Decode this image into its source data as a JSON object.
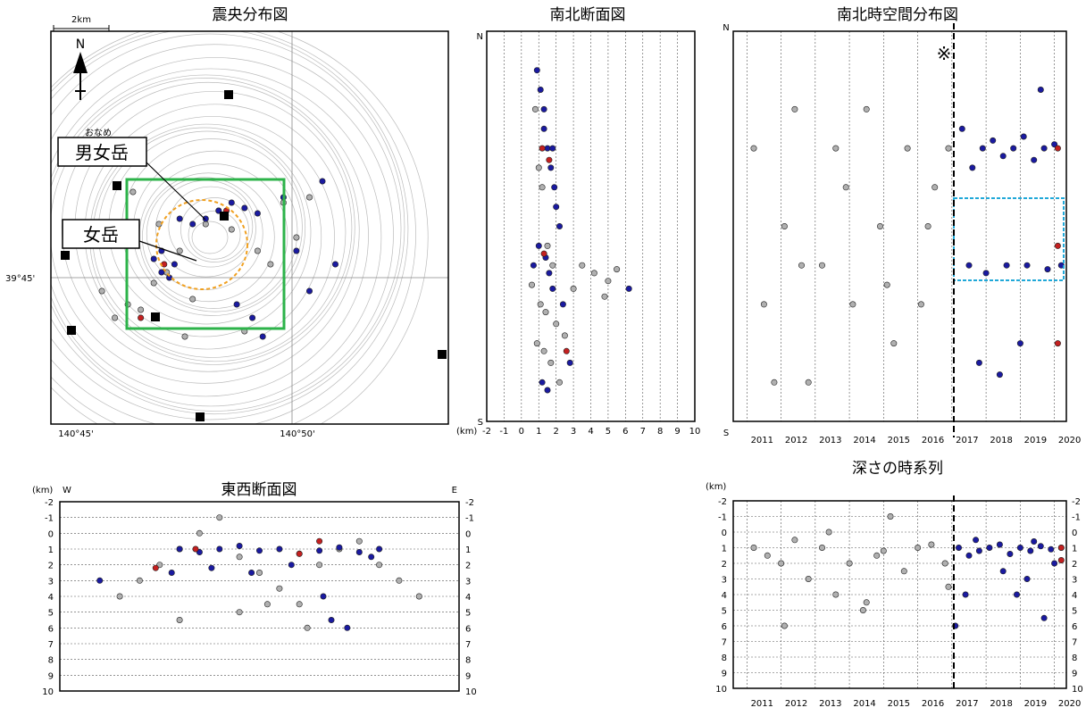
{
  "colors": {
    "old_events": "#b0b0b0",
    "recent_events": "#1a1aa0",
    "large_events": "#c42020",
    "highlight_box": "#2db34a",
    "crater_circle": "#f0a020",
    "focus_box": "#20a8d8"
  },
  "panels": {
    "epicenter": {
      "title": "震央分布図",
      "scale_label": "2km",
      "north_label": "N",
      "lat_label": "39°45'",
      "lon_labels": [
        "140°45'",
        "140°50'"
      ],
      "callout_ruby": "おなめ",
      "callout_1": "男女岳",
      "callout_2": "女岳"
    },
    "ns_section": {
      "title": "南北断面図",
      "top_label": "N",
      "bottom_label": "S",
      "unit": "(km)",
      "x_ticks": [
        "-2",
        "-1",
        "0",
        "1",
        "2",
        "3",
        "4",
        "5",
        "6",
        "7",
        "8",
        "9",
        "10"
      ]
    },
    "ns_time": {
      "title": "南北時空間分布図",
      "top_label": "N",
      "bottom_label": "S",
      "note_mark": "※",
      "years": [
        "2011",
        "2012",
        "2013",
        "2014",
        "2015",
        "2016",
        "2017",
        "2018",
        "2019",
        "2020"
      ]
    },
    "ew_section": {
      "title": "東西断面図",
      "unit": "(km)",
      "left_label": "W",
      "right_label": "E",
      "y_ticks": [
        "-2",
        "-1",
        "0",
        "1",
        "2",
        "3",
        "4",
        "5",
        "6",
        "7",
        "8",
        "9",
        "10"
      ]
    },
    "depth_time": {
      "title": "深さの時系列",
      "unit": "(km)",
      "y_ticks": [
        "-2",
        "-1",
        "0",
        "1",
        "2",
        "3",
        "4",
        "5",
        "6",
        "7",
        "8",
        "9",
        "10"
      ],
      "years": [
        "2011",
        "2012",
        "2013",
        "2014",
        "2015",
        "2016",
        "2017",
        "2018",
        "2019",
        "2020"
      ]
    }
  },
  "chart_data": [
    {
      "type": "scatter",
      "title": "震央分布図",
      "xlabel": "",
      "ylabel": "",
      "series": [
        {
          "color": "old_events",
          "x": [
            140.765,
            140.77,
            140.78,
            140.785,
            140.79,
            140.8,
            140.805,
            140.81,
            140.82,
            140.825,
            140.835,
            140.76,
            140.775,
            140.795,
            140.815,
            140.83,
            140.84,
            140.772,
            140.782,
            140.792
          ],
          "y": [
            39.735,
            39.74,
            39.748,
            39.752,
            39.76,
            39.77,
            39.775,
            39.768,
            39.76,
            39.755,
            39.765,
            39.745,
            39.738,
            39.742,
            39.73,
            39.778,
            39.78,
            39.782,
            39.77,
            39.728
          ]
        },
        {
          "color": "recent_events",
          "x": [
            140.78,
            140.783,
            140.786,
            140.8,
            140.805,
            140.81,
            140.815,
            140.82,
            140.83,
            140.845,
            140.85,
            140.79,
            140.795,
            140.812,
            140.818,
            140.822,
            140.84,
            140.835,
            140.783,
            140.788
          ],
          "y": [
            39.757,
            39.76,
            39.75,
            39.772,
            39.775,
            39.778,
            39.776,
            39.774,
            39.78,
            39.786,
            39.755,
            39.772,
            39.77,
            39.74,
            39.735,
            39.728,
            39.745,
            39.76,
            39.752,
            39.755
          ]
        },
        {
          "color": "large_events",
          "x": [
            140.784,
            140.808,
            140.775
          ],
          "y": [
            39.755,
            39.775,
            39.735
          ]
        }
      ]
    },
    {
      "type": "scatter",
      "title": "南北断面図",
      "xlabel": "(km)",
      "ylabel": "",
      "xlim": [
        -2,
        10
      ],
      "series": [
        {
          "color": "old_events",
          "x": [
            0.8,
            1.0,
            1.2,
            1.5,
            1.8,
            0.6,
            1.1,
            1.4,
            2.0,
            2.5,
            3.5,
            4.2,
            5.0,
            0.9,
            1.3,
            1.7,
            2.2,
            3.0,
            4.8,
            5.5
          ],
          "y": [
            0.2,
            0.35,
            0.4,
            0.55,
            0.6,
            0.65,
            0.7,
            0.72,
            0.75,
            0.78,
            0.6,
            0.62,
            0.64,
            0.8,
            0.82,
            0.85,
            0.9,
            0.66,
            0.68,
            0.61
          ]
        },
        {
          "color": "recent_events",
          "x": [
            0.9,
            1.1,
            1.3,
            1.5,
            1.7,
            1.9,
            2.0,
            2.2,
            1.0,
            1.4,
            1.6,
            1.8,
            2.4,
            2.8,
            1.2,
            1.5,
            0.7,
            6.2,
            1.3,
            1.8
          ],
          "y": [
            0.1,
            0.15,
            0.25,
            0.3,
            0.35,
            0.4,
            0.45,
            0.5,
            0.55,
            0.58,
            0.62,
            0.66,
            0.7,
            0.85,
            0.9,
            0.92,
            0.6,
            0.66,
            0.2,
            0.3
          ]
        },
        {
          "color": "large_events",
          "x": [
            1.2,
            1.6,
            1.3,
            2.6
          ],
          "y": [
            0.3,
            0.33,
            0.57,
            0.82
          ]
        }
      ]
    },
    {
      "type": "scatter",
      "title": "南北時空間分布図",
      "xlabel": "",
      "ylabel": "",
      "categories": [
        "2011",
        "2012",
        "2013",
        "2014",
        "2015",
        "2016",
        "2017",
        "2018",
        "2019",
        "2020"
      ],
      "series": [
        {
          "color": "old_events",
          "x": [
            2011.2,
            2011.5,
            2012.1,
            2012.4,
            2012.8,
            2013.2,
            2013.6,
            2014.1,
            2014.5,
            2014.9,
            2015.3,
            2015.7,
            2016.1,
            2016.5,
            2016.9,
            2011.8,
            2012.6,
            2013.9,
            2015.1,
            2016.3
          ],
          "y": [
            0.3,
            0.7,
            0.5,
            0.2,
            0.9,
            0.6,
            0.3,
            0.7,
            0.2,
            0.5,
            0.8,
            0.3,
            0.7,
            0.4,
            0.3,
            0.9,
            0.6,
            0.4,
            0.65,
            0.5
          ]
        },
        {
          "color": "recent_events",
          "x": [
            2017.3,
            2017.6,
            2017.9,
            2018.2,
            2018.5,
            2018.8,
            2019.1,
            2019.4,
            2019.7,
            2020.0,
            2017.5,
            2018.0,
            2018.6,
            2019.2,
            2019.8,
            2020.2,
            2017.8,
            2018.4,
            2019.0,
            2019.6
          ],
          "y": [
            0.25,
            0.35,
            0.3,
            0.28,
            0.32,
            0.3,
            0.27,
            0.33,
            0.3,
            0.29,
            0.6,
            0.62,
            0.6,
            0.6,
            0.61,
            0.6,
            0.85,
            0.88,
            0.8,
            0.15
          ]
        },
        {
          "color": "large_events",
          "x": [
            2020.1,
            2020.1,
            2020.1
          ],
          "y": [
            0.3,
            0.55,
            0.8
          ]
        }
      ]
    },
    {
      "type": "scatter",
      "title": "東西断面図",
      "xlabel": "",
      "ylabel": "(km)",
      "ylim": [
        -2,
        10
      ],
      "series": [
        {
          "color": "old_events",
          "x": [
            0.15,
            0.2,
            0.25,
            0.3,
            0.35,
            0.4,
            0.45,
            0.5,
            0.55,
            0.6,
            0.65,
            0.7,
            0.75,
            0.8,
            0.85,
            0.9,
            0.3,
            0.45,
            0.52,
            0.62
          ],
          "y": [
            4.0,
            3.0,
            2.0,
            1.0,
            0.0,
            -1.0,
            1.5,
            2.5,
            3.5,
            4.5,
            2.0,
            1.0,
            0.5,
            2.0,
            3.0,
            4.0,
            5.5,
            5.0,
            4.5,
            6.0
          ]
        },
        {
          "color": "recent_events",
          "x": [
            0.3,
            0.35,
            0.4,
            0.45,
            0.5,
            0.55,
            0.6,
            0.65,
            0.7,
            0.75,
            0.8,
            0.1,
            0.38,
            0.48,
            0.58,
            0.68,
            0.72,
            0.28,
            0.66,
            0.78
          ],
          "y": [
            1.0,
            1.2,
            1.0,
            0.8,
            1.1,
            1.0,
            1.3,
            1.1,
            0.9,
            1.2,
            1.0,
            3.0,
            2.2,
            2.5,
            2.0,
            5.5,
            6.0,
            2.5,
            4.0,
            1.5
          ]
        },
        {
          "color": "large_events",
          "x": [
            0.24,
            0.34,
            0.6,
            0.65
          ],
          "y": [
            2.2,
            1.0,
            1.3,
            0.5
          ]
        }
      ]
    },
    {
      "type": "scatter",
      "title": "深さの時系列",
      "xlabel": "",
      "ylabel": "(km)",
      "ylim": [
        -2,
        10
      ],
      "categories": [
        "2011",
        "2012",
        "2013",
        "2014",
        "2015",
        "2016",
        "2017",
        "2018",
        "2019",
        "2020"
      ],
      "series": [
        {
          "color": "old_events",
          "x": [
            2011.2,
            2011.6,
            2012.0,
            2012.4,
            2012.8,
            2013.2,
            2013.6,
            2014.0,
            2014.4,
            2014.8,
            2015.2,
            2015.6,
            2016.0,
            2016.4,
            2016.8,
            2012.1,
            2013.4,
            2014.5,
            2015.0,
            2016.9
          ],
          "y": [
            1.0,
            1.5,
            2.0,
            0.5,
            3.0,
            1.0,
            4.0,
            2.0,
            5.0,
            1.5,
            -1.0,
            2.5,
            1.0,
            0.8,
            2.0,
            6.0,
            0.0,
            4.5,
            1.2,
            3.5
          ]
        },
        {
          "color": "recent_events",
          "x": [
            2017.2,
            2017.5,
            2017.8,
            2018.1,
            2018.4,
            2018.7,
            2019.0,
            2019.3,
            2019.6,
            2019.9,
            2020.2,
            2017.1,
            2017.4,
            2018.5,
            2019.2,
            2019.7,
            2020.0,
            2017.7,
            2018.9,
            2019.4
          ],
          "y": [
            1.0,
            1.5,
            1.2,
            1.0,
            0.8,
            1.4,
            1.0,
            1.2,
            0.9,
            1.1,
            1.0,
            6.0,
            4.0,
            2.5,
            3.0,
            5.5,
            2.0,
            0.5,
            4.0,
            0.6
          ]
        },
        {
          "color": "large_events",
          "x": [
            2020.2,
            2020.2
          ],
          "y": [
            1.0,
            1.8
          ]
        }
      ]
    }
  ]
}
